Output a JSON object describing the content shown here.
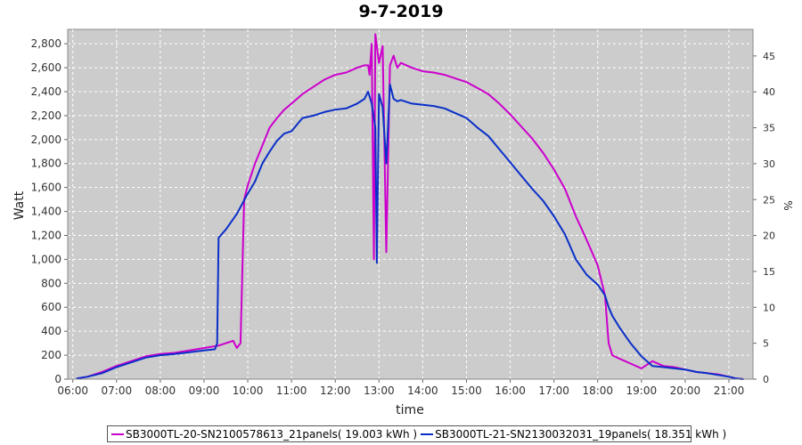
{
  "colors": {
    "series1": "#cc00cc",
    "series2": "#0a2fc8",
    "plot_bg": "#cccccc",
    "grid": "#ffffff"
  },
  "chart_data": {
    "type": "line",
    "title": "9-7-2019",
    "xlabel": "time",
    "ylabel": "Watt",
    "y2label": "%",
    "x_ticks": [
      "06:00",
      "07:00",
      "08:00",
      "09:00",
      "10:00",
      "11:00",
      "12:00",
      "13:00",
      "14:00",
      "15:00",
      "16:00",
      "17:00",
      "18:00",
      "19:00",
      "20:00",
      "21:00"
    ],
    "xlim": [
      "05:53",
      "21:33"
    ],
    "ylim": [
      0,
      2920
    ],
    "y_ticks": [
      "0",
      "200",
      "400",
      "600",
      "800",
      "1,000",
      "1,200",
      "1,400",
      "1,600",
      "1,800",
      "2,000",
      "2,200",
      "2,400",
      "2,600",
      "2,800"
    ],
    "y2lim": [
      0,
      48.7
    ],
    "y2_ticks": [
      "0",
      "5",
      "10",
      "15",
      "20",
      "25",
      "30",
      "35",
      "40",
      "45"
    ],
    "grid": true,
    "legend_position": "bottom",
    "series": [
      {
        "name": "SB3000TL-20-SN2100578613_21panels( 19.003 kWh )",
        "x": [
          "06:05",
          "06:20",
          "06:40",
          "07:00",
          "07:20",
          "07:40",
          "08:00",
          "08:20",
          "08:40",
          "09:00",
          "09:20",
          "09:30",
          "09:40",
          "09:45",
          "09:50",
          "09:55",
          "10:00",
          "10:10",
          "10:20",
          "10:30",
          "10:40",
          "10:50",
          "11:00",
          "11:15",
          "11:30",
          "11:45",
          "12:00",
          "12:15",
          "12:30",
          "12:40",
          "12:45",
          "12:47",
          "12:50",
          "12:53",
          "12:55",
          "13:00",
          "13:05",
          "13:10",
          "13:15",
          "13:20",
          "13:25",
          "13:30",
          "13:45",
          "14:00",
          "14:15",
          "14:30",
          "14:45",
          "15:00",
          "15:15",
          "15:30",
          "15:45",
          "16:00",
          "16:15",
          "16:30",
          "16:45",
          "17:00",
          "17:15",
          "17:30",
          "17:45",
          "18:00",
          "18:10",
          "18:15",
          "18:20",
          "18:30",
          "18:45",
          "19:00",
          "19:15",
          "19:30",
          "19:45",
          "20:00",
          "20:15",
          "20:30",
          "20:45",
          "21:00",
          "21:10",
          "21:20"
        ],
        "values": [
          5,
          20,
          60,
          110,
          150,
          190,
          210,
          220,
          240,
          260,
          280,
          300,
          320,
          260,
          300,
          1500,
          1620,
          1800,
          1950,
          2100,
          2180,
          2250,
          2300,
          2380,
          2440,
          2500,
          2540,
          2560,
          2600,
          2620,
          2620,
          2540,
          2800,
          1000,
          2880,
          2640,
          2780,
          1060,
          2620,
          2700,
          2600,
          2640,
          2600,
          2570,
          2560,
          2540,
          2510,
          2480,
          2430,
          2380,
          2300,
          2210,
          2110,
          2010,
          1890,
          1750,
          1590,
          1360,
          1160,
          950,
          700,
          300,
          200,
          170,
          130,
          90,
          150,
          110,
          100,
          80,
          60,
          50,
          40,
          20,
          5,
          0
        ]
      },
      {
        "name": "SB3000TL-21-SN2130032031_19panels( 18.351 kWh )",
        "x": [
          "06:05",
          "06:20",
          "06:40",
          "07:00",
          "07:20",
          "07:40",
          "08:00",
          "08:20",
          "08:40",
          "09:00",
          "09:15",
          "09:18",
          "09:20",
          "09:30",
          "09:45",
          "10:00",
          "10:10",
          "10:20",
          "10:30",
          "10:40",
          "10:50",
          "11:00",
          "11:15",
          "11:30",
          "11:45",
          "12:00",
          "12:15",
          "12:30",
          "12:40",
          "12:45",
          "12:50",
          "12:55",
          "12:57",
          "13:00",
          "13:05",
          "13:10",
          "13:15",
          "13:20",
          "13:25",
          "13:30",
          "13:45",
          "14:00",
          "14:15",
          "14:30",
          "14:45",
          "15:00",
          "15:15",
          "15:30",
          "15:45",
          "16:00",
          "16:15",
          "16:30",
          "16:45",
          "17:00",
          "17:15",
          "17:30",
          "17:45",
          "18:00",
          "18:10",
          "18:15",
          "18:20",
          "18:30",
          "18:45",
          "19:00",
          "19:15",
          "19:30",
          "19:45",
          "20:00",
          "20:15",
          "20:30",
          "20:45",
          "21:00",
          "21:10",
          "21:20"
        ],
        "values": [
          5,
          20,
          50,
          100,
          140,
          180,
          200,
          210,
          225,
          240,
          250,
          300,
          1180,
          1250,
          1380,
          1550,
          1650,
          1800,
          1900,
          1990,
          2050,
          2070,
          2180,
          2200,
          2230,
          2250,
          2260,
          2300,
          2340,
          2400,
          2300,
          2100,
          970,
          2380,
          2270,
          1800,
          2460,
          2340,
          2320,
          2330,
          2300,
          2290,
          2280,
          2260,
          2220,
          2180,
          2100,
          2030,
          1920,
          1810,
          1700,
          1590,
          1490,
          1360,
          1210,
          1000,
          870,
          790,
          700,
          600,
          530,
          430,
          300,
          190,
          110,
          100,
          90,
          80,
          60,
          50,
          35,
          20,
          5,
          0
        ]
      }
    ]
  }
}
